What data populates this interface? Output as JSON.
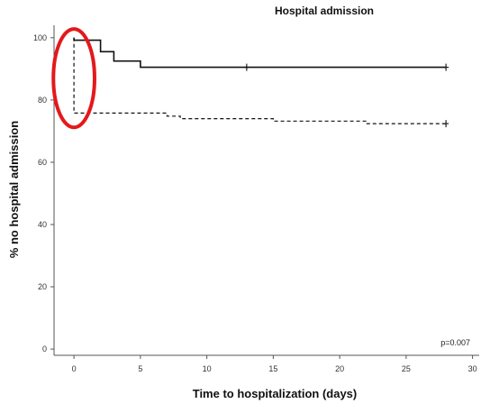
{
  "chart_data": {
    "type": "line",
    "title": "Hospital admission",
    "xlabel": "Time to hospitalization (days)",
    "ylabel": "% no hospital admission",
    "xlim": [
      -1.5,
      30.5
    ],
    "ylim": [
      -2,
      104
    ],
    "x_ticks": [
      0,
      5,
      10,
      15,
      20,
      25,
      30
    ],
    "y_ticks": [
      0,
      20,
      40,
      60,
      80,
      100
    ],
    "grid": false,
    "annotation": "p=0.007",
    "series": [
      {
        "style": "solid",
        "color": "#111111",
        "steps": [
          [
            0,
            100
          ],
          [
            0,
            99.2
          ],
          [
            2,
            99.2
          ],
          [
            2,
            95.5
          ],
          [
            3,
            95.5
          ],
          [
            3,
            92.5
          ],
          [
            5,
            92.5
          ],
          [
            5,
            90.5
          ],
          [
            28,
            90.5
          ]
        ],
        "censored": [
          [
            13,
            90.5
          ],
          [
            28,
            90.5
          ]
        ]
      },
      {
        "style": "dashed",
        "color": "#111111",
        "steps": [
          [
            0,
            100
          ],
          [
            0,
            75.8
          ],
          [
            7,
            75.8
          ],
          [
            7,
            74.8
          ],
          [
            8,
            74.8
          ],
          [
            8,
            74.0
          ],
          [
            15,
            74.0
          ],
          [
            15,
            73.2
          ],
          [
            22,
            73.2
          ],
          [
            22,
            72.4
          ],
          [
            28,
            72.4
          ]
        ],
        "censored": [
          [
            28,
            72.4
          ]
        ]
      }
    ],
    "highlight": {
      "shape": "ellipse",
      "color": "#e3191b",
      "cx": 0,
      "cy": 87,
      "rx_days": 1.55,
      "ry_pct": 15.8
    }
  }
}
